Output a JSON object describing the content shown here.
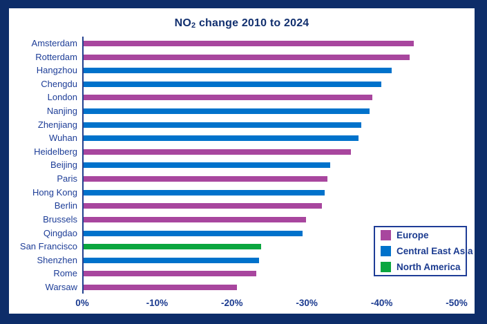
{
  "window": {
    "frame_color": "#0d2d69",
    "canvas_color": "#ffffff"
  },
  "colors": {
    "title_text": "#12306f",
    "label_text": "#1d3d97",
    "axis_line": "#24418f",
    "europe": "#a8469e",
    "central_east_asia": "#0072cb",
    "north_america": "#0aa63f"
  },
  "chart_data": {
    "type": "bar",
    "orientation": "horizontal",
    "title": "NO₂ change 2010 to 2024",
    "title_parts": {
      "prefix": "NO",
      "sub": "2",
      "rest": " change 2010 to 2024"
    },
    "xlabel": "",
    "ylabel": "",
    "x_axis": {
      "ticks": [
        "0%",
        "-10%",
        "-20%",
        "-30%",
        "-40%",
        "-50%"
      ],
      "min": 0,
      "max": -50,
      "unit": "%",
      "grid": false
    },
    "categories": [
      "Amsterdam",
      "Rotterdam",
      "Hangzhou",
      "Chengdu",
      "London",
      "Nanjing",
      "Zhenjiang",
      "Wuhan",
      "Heidelberg",
      "Beijing",
      "Paris",
      "Hong Kong",
      "Berlin",
      "Brussels",
      "Qingdao",
      "San Francisco",
      "Shenzhen",
      "Rome",
      "Warsaw"
    ],
    "values": [
      -44.1,
      -43.5,
      -41.1,
      -39.8,
      -38.6,
      -38.2,
      -37.1,
      -36.7,
      -35.7,
      -32.9,
      -32.6,
      -32.2,
      -31.8,
      -29.7,
      -29.2,
      -23.7,
      -23.4,
      -23.1,
      -20.5
    ],
    "regions": [
      "Europe",
      "Europe",
      "Central East Asia",
      "Central East Asia",
      "Europe",
      "Central East Asia",
      "Central East Asia",
      "Central East Asia",
      "Europe",
      "Central East Asia",
      "Europe",
      "Central East Asia",
      "Europe",
      "Europe",
      "Central East Asia",
      "North America",
      "Central East Asia",
      "Europe",
      "Europe"
    ],
    "legend": {
      "position": "bottom-right",
      "entries": [
        {
          "label": "Europe",
          "color": "#a8469e"
        },
        {
          "label": "Central East Asia",
          "color": "#0072cb"
        },
        {
          "label": "North America",
          "color": "#0aa63f"
        }
      ]
    }
  }
}
